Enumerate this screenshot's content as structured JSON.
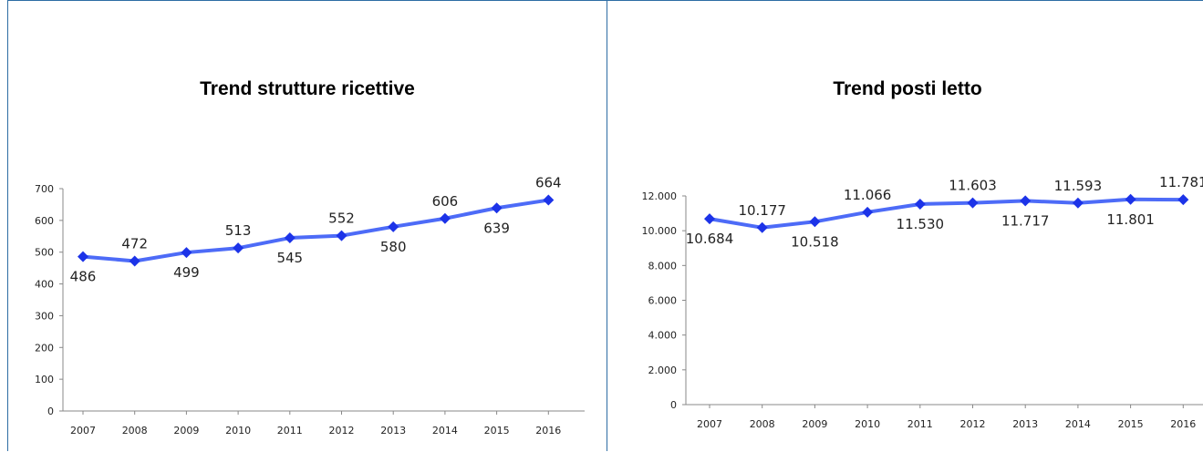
{
  "colors": {
    "frame": "#2e6da4",
    "line": "#4d6bf7",
    "marker": "#1c33e8",
    "axis": "#888888"
  },
  "chart_data": [
    {
      "type": "line",
      "title": "Trend strutture ricettive",
      "categories": [
        "2007",
        "2008",
        "2009",
        "2010",
        "2011",
        "2012",
        "2013",
        "2014",
        "2015",
        "2016"
      ],
      "series": [
        {
          "values": [
            486,
            472,
            499,
            513,
            545,
            552,
            580,
            606,
            639,
            664
          ]
        }
      ],
      "data_labels": [
        "486",
        "472",
        "499",
        "513",
        "545",
        "552",
        "580",
        "606",
        "639",
        "664"
      ],
      "label_side": [
        "below",
        "above",
        "below",
        "above",
        "below",
        "above",
        "below",
        "above",
        "below",
        "above"
      ],
      "yticks": [
        "0",
        "100",
        "200",
        "300",
        "400",
        "500",
        "600",
        "700"
      ],
      "ytick_values": [
        0,
        100,
        200,
        300,
        400,
        500,
        600,
        700
      ],
      "ylim": [
        0,
        700
      ],
      "grid": false
    },
    {
      "type": "line",
      "title": "Trend posti letto",
      "categories": [
        "2007",
        "2008",
        "2009",
        "2010",
        "2011",
        "2012",
        "2013",
        "2014",
        "2015",
        "2016"
      ],
      "series": [
        {
          "values": [
            10684,
            10177,
            10518,
            11066,
            11530,
            11603,
            11717,
            11593,
            11801,
            11781
          ]
        }
      ],
      "data_labels": [
        "10.684",
        "10.177",
        "10.518",
        "11.066",
        "11.530",
        "11.603",
        "11.717",
        "11.593",
        "11.801",
        "11.781"
      ],
      "label_side": [
        "below",
        "above",
        "below",
        "above",
        "below",
        "above",
        "below",
        "above",
        "below",
        "above"
      ],
      "yticks": [
        "0",
        "2.000",
        "4.000",
        "6.000",
        "8.000",
        "10.000",
        "12.000"
      ],
      "ytick_values": [
        0,
        2000,
        4000,
        6000,
        8000,
        10000,
        12000
      ],
      "ylim": [
        0,
        12000
      ],
      "grid": false
    }
  ]
}
